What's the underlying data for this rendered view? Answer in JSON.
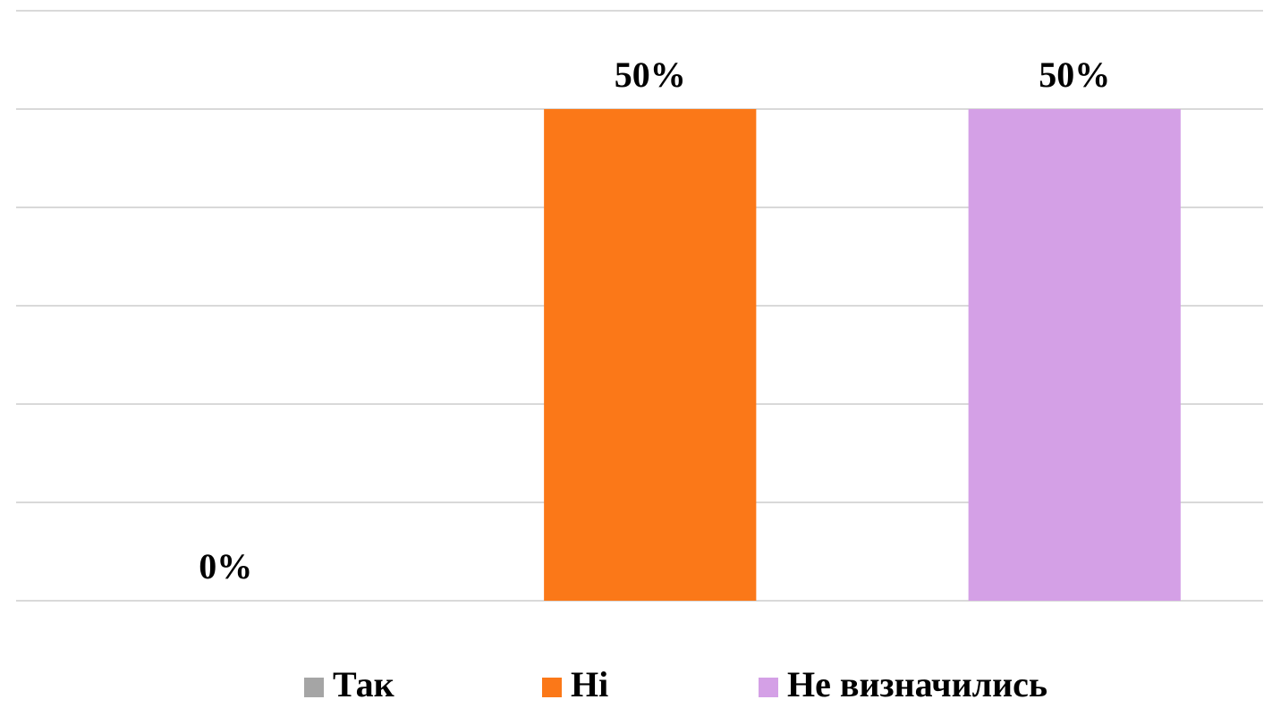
{
  "chart_data": {
    "type": "bar",
    "series": [
      {
        "name": "Так",
        "color": "#a5a5a5",
        "values": [
          0
        ],
        "value_labels": [
          "0%"
        ]
      },
      {
        "name": "Ні",
        "color": "#fb7818",
        "values": [
          50
        ],
        "value_labels": [
          "50%"
        ]
      },
      {
        "name": "Не визначились",
        "color": "#d4a0e6",
        "values": [
          50
        ],
        "value_labels": [
          "50%"
        ]
      }
    ],
    "ylim": [
      0,
      60
    ],
    "yticks": [
      0,
      10,
      20,
      30,
      40,
      50,
      60
    ],
    "grid": true,
    "legend": "bottom"
  }
}
